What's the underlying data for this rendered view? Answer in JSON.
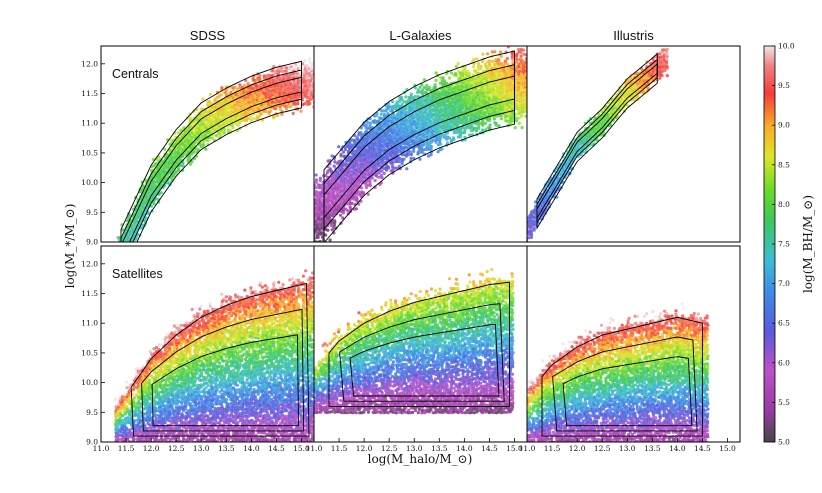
{
  "chart_data": {
    "type": "heatmap",
    "description_grid": "2 rows x 3 columns of hexbin panels colored by black hole mass, with black density contours",
    "column_titles": [
      "SDSS",
      "L-Galaxies",
      "Illustris"
    ],
    "row_labels": [
      "Centrals",
      "Satellites"
    ],
    "xlabel": "log(M_halo/M_⊙)",
    "ylabel": "log(M_*/M_⊙)",
    "xlim": [
      11.0,
      15.25
    ],
    "ylim": [
      9.0,
      12.3
    ],
    "x_ticks": [
      "11.0",
      "11.5",
      "12.0",
      "12.5",
      "13.0",
      "13.5",
      "14.0",
      "14.5",
      "15.0"
    ],
    "x_ticks_last_column": [
      "11.0",
      "11.5",
      "12.0",
      "12.5",
      "13.0",
      "13.5",
      "14.0",
      "14.5",
      "15.0"
    ],
    "y_ticks_top": [
      "9.0",
      "9.5",
      "10.0",
      "10.5",
      "11.0",
      "11.5",
      "12.0"
    ],
    "y_ticks_bottom": [
      "9.0",
      "9.5",
      "10.0",
      "10.5",
      "11.0",
      "11.5",
      "12.0"
    ],
    "colorbar": {
      "label": "log(M_BH/M_⊙)",
      "range": [
        5.0,
        10.0
      ],
      "ticks": [
        "5.0",
        "5.5",
        "6.0",
        "6.5",
        "7.0",
        "7.5",
        "8.0",
        "8.5",
        "9.0",
        "9.5",
        "10.0"
      ]
    },
    "panels": [
      {
        "row": "Centrals",
        "column": "SDSS",
        "shape": "relation",
        "ridge": [
          [
            11.5,
            9.0
          ],
          [
            12.0,
            9.9
          ],
          [
            12.5,
            10.5
          ],
          [
            13.0,
            10.95
          ],
          [
            13.5,
            11.2
          ],
          [
            14.0,
            11.4
          ],
          [
            14.5,
            11.55
          ],
          [
            15.0,
            11.65
          ]
        ],
        "spread": 0.35,
        "x_range": [
          11.2,
          15.25
        ],
        "bh_at_low": 7.3,
        "bh_at_high": 9.8
      },
      {
        "row": "Centrals",
        "column": "L-Galaxies",
        "shape": "relation",
        "ridge": [
          [
            11.1,
            9.5
          ],
          [
            11.5,
            9.9
          ],
          [
            12.0,
            10.4
          ],
          [
            12.5,
            10.75
          ],
          [
            13.0,
            11.0
          ],
          [
            13.5,
            11.2
          ],
          [
            14.0,
            11.35
          ],
          [
            14.5,
            11.5
          ],
          [
            15.0,
            11.6
          ]
        ],
        "spread": 0.55,
        "x_range": [
          11.0,
          15.25
        ],
        "bh_at_low": 5.5,
        "bh_at_high": 9.0
      },
      {
        "row": "Centrals",
        "column": "Illustris",
        "shape": "relation",
        "ridge": [
          [
            11.0,
            9.2
          ],
          [
            11.5,
            9.9
          ],
          [
            12.0,
            10.6
          ],
          [
            12.5,
            11.0
          ],
          [
            13.0,
            11.5
          ],
          [
            13.5,
            11.85
          ]
        ],
        "spread": 0.22,
        "x_range": [
          11.0,
          13.8
        ],
        "bh_at_low": 6.3,
        "bh_at_high": 9.6
      },
      {
        "row": "Satellites",
        "column": "SDSS",
        "shape": "band",
        "top_edge": [
          [
            11.5,
            9.8
          ],
          [
            12.0,
            10.4
          ],
          [
            12.5,
            10.8
          ],
          [
            13.0,
            11.1
          ],
          [
            13.5,
            11.3
          ],
          [
            14.0,
            11.45
          ],
          [
            14.5,
            11.55
          ],
          [
            15.0,
            11.65
          ]
        ],
        "y_bottom": 9.0,
        "x_range": [
          11.3,
          15.25
        ],
        "bh_at_bottom": 5.5,
        "bh_at_top": 9.5
      },
      {
        "row": "Satellites",
        "column": "L-Galaxies",
        "shape": "band",
        "top_edge": [
          [
            11.0,
            10.2
          ],
          [
            11.5,
            10.7
          ],
          [
            12.0,
            11.0
          ],
          [
            12.5,
            11.2
          ],
          [
            13.0,
            11.35
          ],
          [
            13.5,
            11.45
          ],
          [
            14.0,
            11.55
          ],
          [
            14.5,
            11.65
          ],
          [
            15.0,
            11.7
          ]
        ],
        "y_bottom": 9.5,
        "x_range": [
          11.0,
          15.0
        ],
        "bh_at_bottom": 5.3,
        "bh_at_top": 8.6
      },
      {
        "row": "Satellites",
        "column": "Illustris",
        "shape": "band",
        "top_edge": [
          [
            11.0,
            9.8
          ],
          [
            11.5,
            10.3
          ],
          [
            12.0,
            10.6
          ],
          [
            12.5,
            10.8
          ],
          [
            13.0,
            10.9
          ],
          [
            13.5,
            11.0
          ],
          [
            14.0,
            11.1
          ],
          [
            14.5,
            11.0
          ]
        ],
        "y_bottom": 9.0,
        "x_range": [
          11.0,
          14.6
        ],
        "bh_at_bottom": 5.5,
        "bh_at_top": 9.5
      }
    ]
  }
}
